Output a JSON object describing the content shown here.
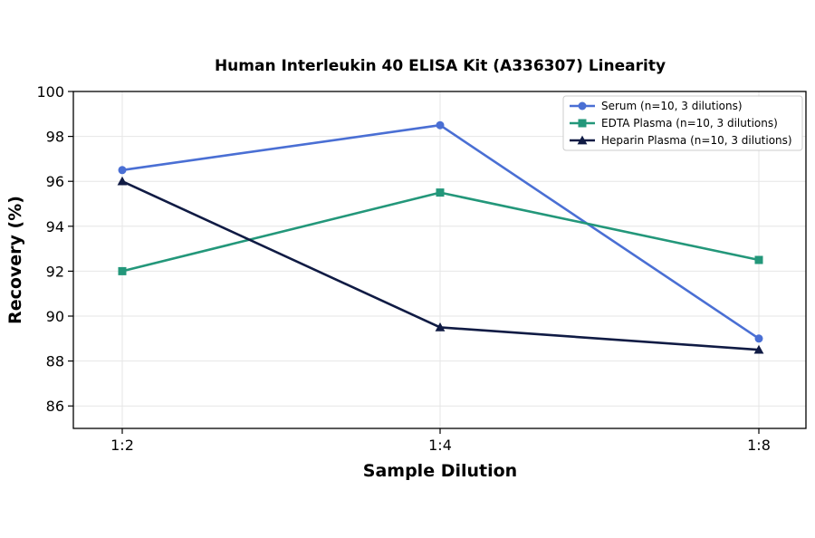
{
  "chart_data": {
    "type": "line",
    "title": "Human Interleukin 40 ELISA Kit (A336307) Linearity",
    "xlabel": "Sample Dilution",
    "ylabel": "Recovery (%)",
    "categories": [
      "1:2",
      "1:4",
      "1:8"
    ],
    "ylim": [
      85,
      100
    ],
    "yticks": [
      86,
      88,
      90,
      92,
      94,
      96,
      98,
      100
    ],
    "grid": true,
    "legend_position": "top-right",
    "series": [
      {
        "name": "Serum (n=10, 3 dilutions)",
        "values": [
          96.5,
          98.5,
          89.0
        ],
        "color": "#4a6fd4",
        "marker": "circle"
      },
      {
        "name": "EDTA Plasma (n=10, 3 dilutions)",
        "values": [
          92.0,
          95.5,
          92.5
        ],
        "color": "#23977a",
        "marker": "square"
      },
      {
        "name": "Heparin Plasma (n=10, 3 dilutions)",
        "values": [
          96.0,
          89.5,
          88.5
        ],
        "color": "#101b44",
        "marker": "triangle"
      }
    ]
  }
}
